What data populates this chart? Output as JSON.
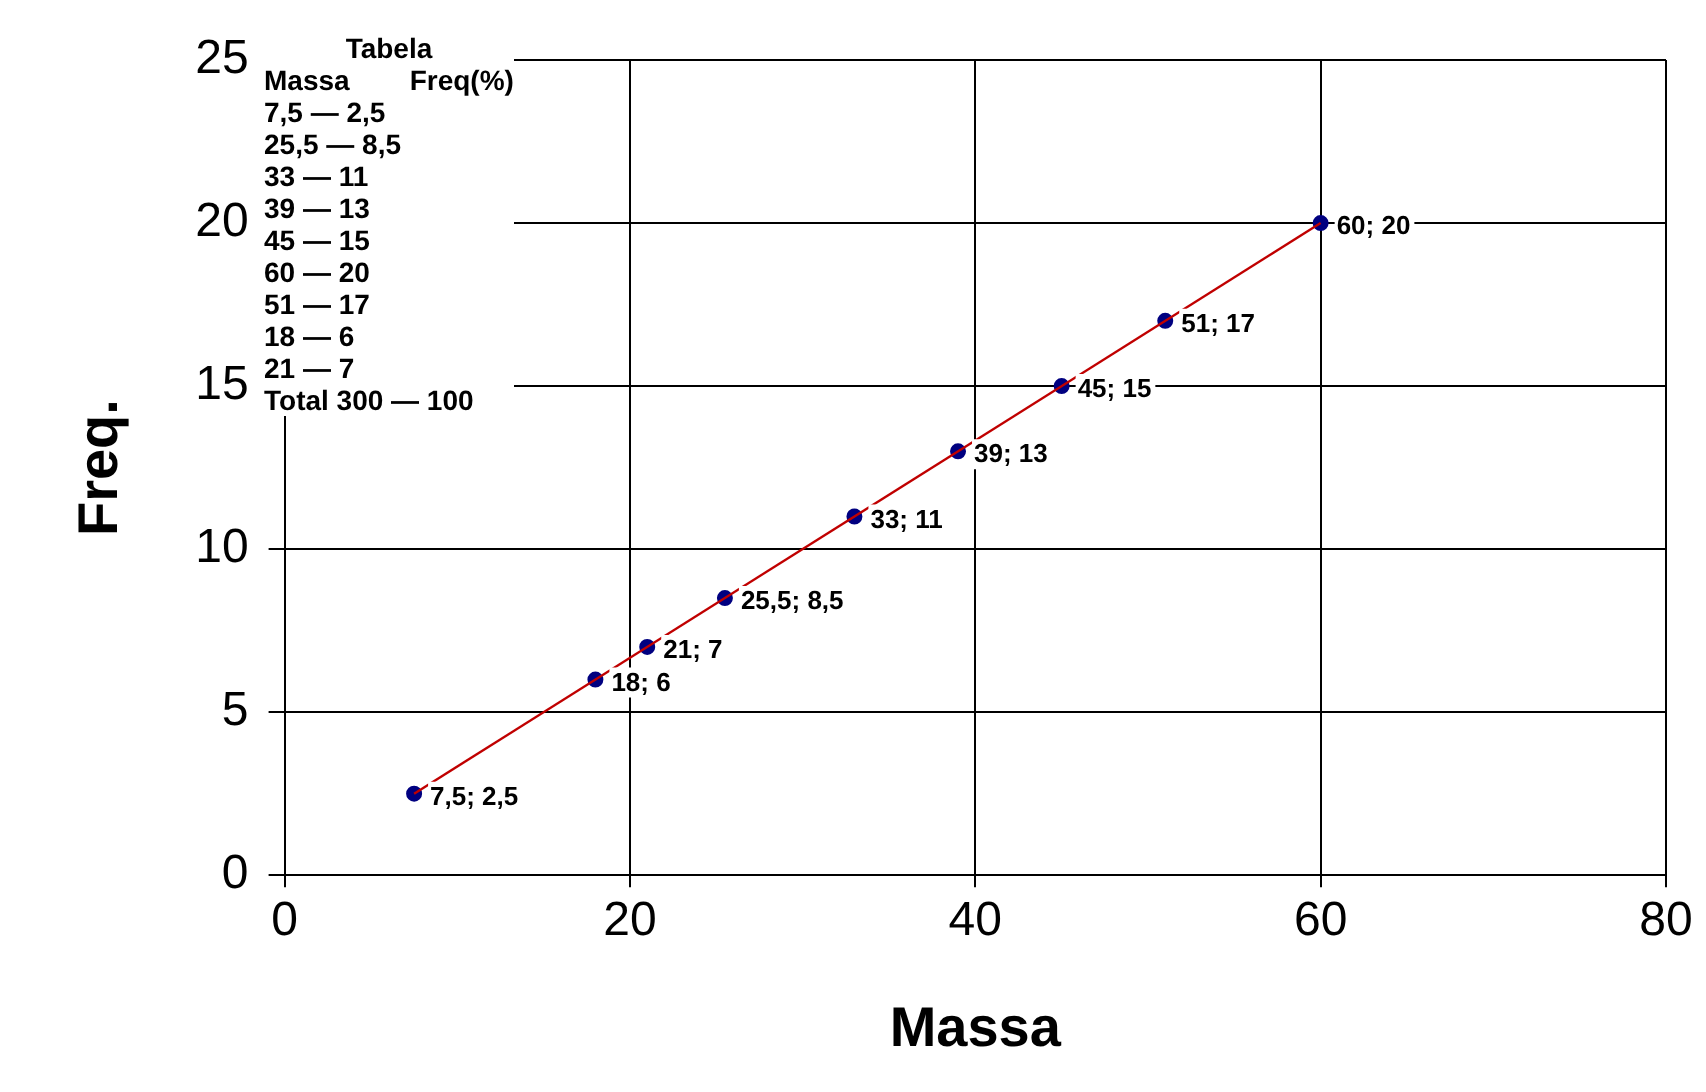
{
  "chart_data": {
    "type": "scatter",
    "xlabel": "Massa",
    "ylabel": "Freq.",
    "annotations": [
      "Tabela",
      "Massa",
      "Freq(%)",
      "7,5 — 2,5",
      "25,5 — 8,5",
      "33 — 11",
      "39 — 13",
      "45 — 15",
      "60 — 20",
      "51 — 17",
      "18 — 6",
      "21 — 7",
      "Total 300 — 100"
    ],
    "series": [
      {
        "type": "line",
        "color": "#c00000",
        "x": [
          7.5,
          60
        ],
        "values": [
          2.5,
          20
        ],
        "marker": "none"
      },
      {
        "color": "#000080",
        "x": [
          7.5,
          25.5,
          33,
          39,
          45,
          60,
          51,
          18,
          21
        ],
        "values": [
          2.5,
          8.5,
          11,
          13,
          15,
          20,
          17,
          6,
          7
        ],
        "marker": "circle",
        "value_labels": [
          "7,5; 2,5",
          "25,5; 8,5",
          "33; 11",
          "39; 13",
          "45; 15",
          "60; 20",
          "51; 17",
          "18; 6",
          "21; 7"
        ]
      }
    ],
    "xlim": [
      0,
      80
    ],
    "xticks": [
      0,
      20,
      40,
      60,
      80
    ],
    "ylim": [
      0,
      25
    ],
    "yticks": [
      0,
      5,
      10,
      15,
      20,
      25
    ],
    "grid": true,
    "legend": false
  }
}
